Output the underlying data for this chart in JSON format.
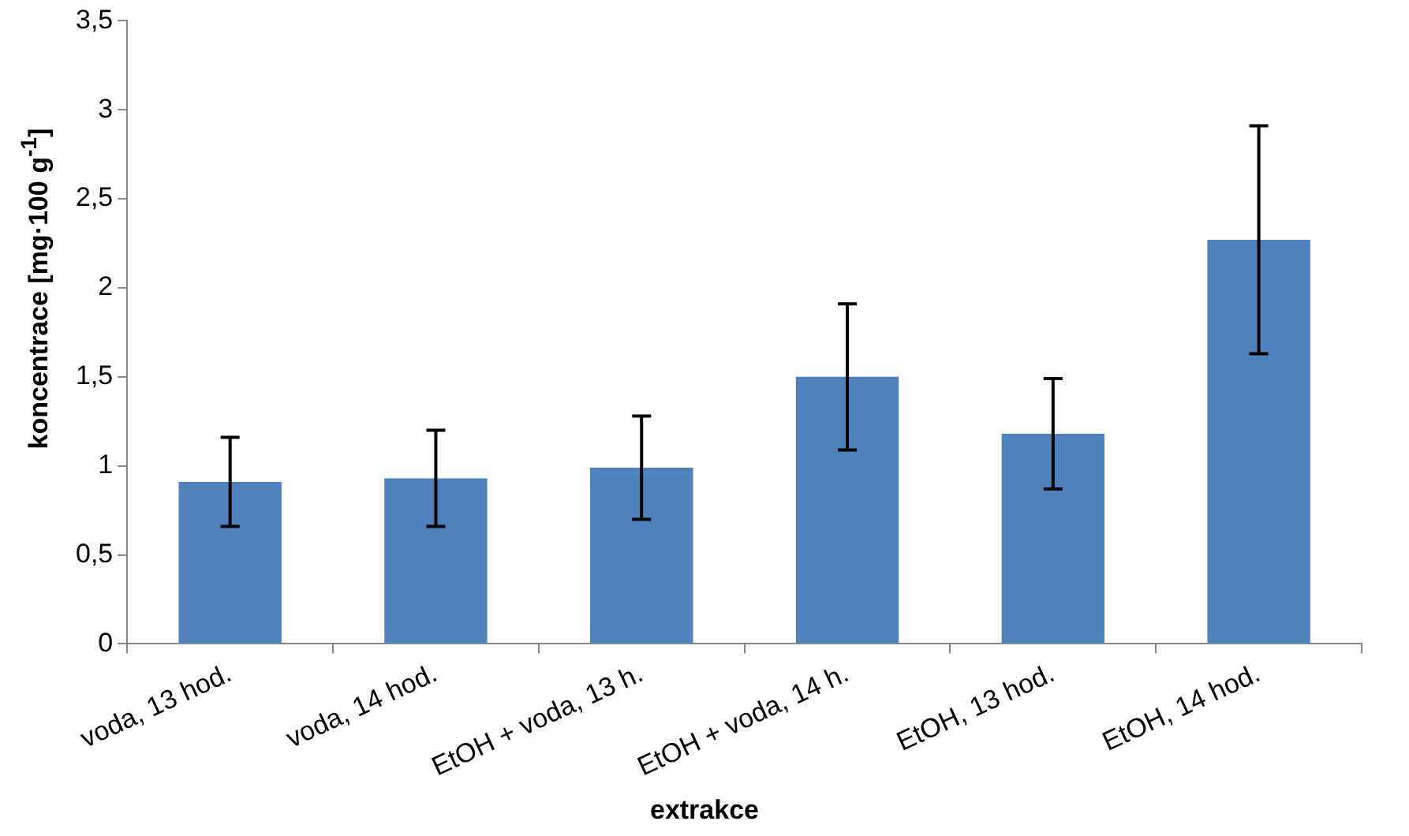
{
  "chart_data": {
    "type": "bar",
    "xlabel": "extrakce",
    "ylabel": "koncentrace [mg·100 g$^{-1}$]",
    "categories": [
      "voda, 13 hod.",
      "voda, 14 hod.",
      "EtOH + voda, 13 h.",
      "EtOH + voda, 14 h.",
      "EtOH, 13 hod.",
      "EtOH, 14 hod."
    ],
    "values": [
      0.91,
      0.93,
      0.99,
      1.5,
      1.18,
      2.27
    ],
    "errors": [
      0.25,
      0.27,
      0.29,
      0.41,
      0.31,
      0.64
    ],
    "color": "#4f81bd",
    "ylim": [
      0,
      3.5
    ],
    "yticks": [
      0,
      {
        "value": 0.5,
        "label": "0,5"
      },
      1,
      {
        "value": 1.5,
        "label": "1,5"
      },
      2,
      {
        "value": 2.5,
        "label": "2,5"
      },
      3,
      {
        "value": 3.5,
        "label": "3,5"
      }
    ],
    "grid": false,
    "legend": false
  }
}
